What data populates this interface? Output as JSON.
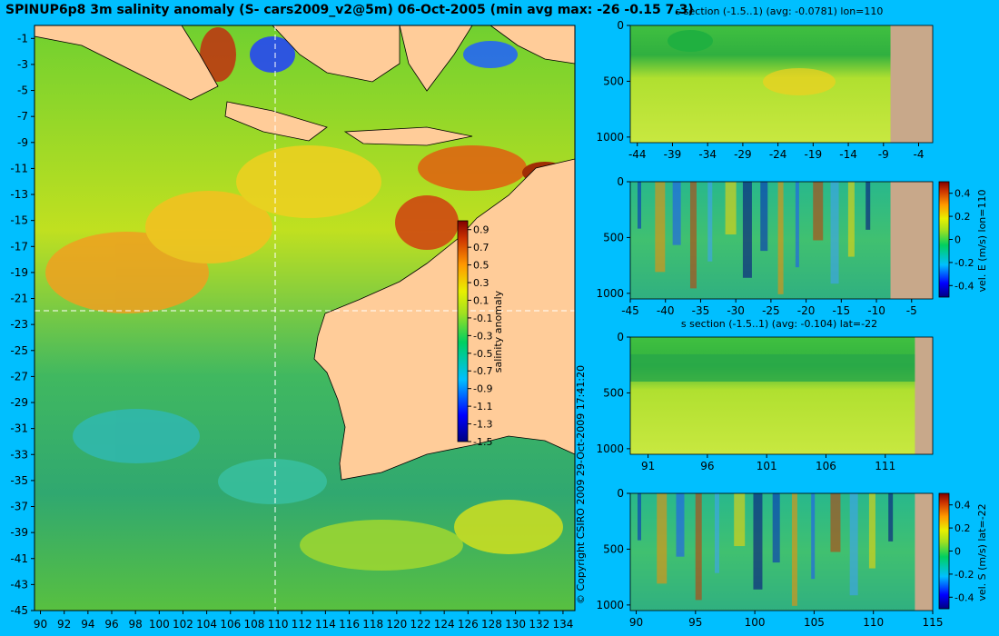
{
  "title": "SPINUP6p8 3m salinity anomaly (S- cars2009_v2@5m) 06-Oct-2005 (min avg max: -26 -0.15 7.3)",
  "copyright": "© Copyright CSIRO 2009   29-Oct-2009 17:41:20",
  "colors": {
    "background": "#00bfff",
    "land": "#ffcc99",
    "section_land": "#c8a88a",
    "guide_line": "#ffffff"
  },
  "chart_data": [
    {
      "id": "main_map",
      "type": "heatmap",
      "title": "SPINUP6p8 3m salinity anomaly (S- cars2009_v2@5m) 06-Oct-2005 (min avg max: -26 -0.15 7.3)",
      "xlim": [
        89.5,
        135
      ],
      "ylim": [
        -45,
        0
      ],
      "x_ticks": [
        90,
        92,
        94,
        96,
        98,
        100,
        102,
        104,
        106,
        108,
        110,
        112,
        114,
        116,
        118,
        120,
        122,
        124,
        126,
        128,
        130,
        132,
        134
      ],
      "y_ticks": [
        -1,
        -3,
        -5,
        -7,
        -9,
        -11,
        -13,
        -15,
        -17,
        -19,
        -21,
        -23,
        -25,
        -27,
        -29,
        -31,
        -33,
        -35,
        -37,
        -39,
        -41,
        -43,
        -45
      ],
      "guide_lon": 110,
      "guide_lat": -22,
      "colorbar": {
        "label": "salinity anomaly",
        "ticks": [
          0.9,
          0.7,
          0.5,
          0.3,
          0.1,
          -0.1,
          -0.3,
          -0.5,
          -0.7,
          -0.9,
          -1.1,
          -1.3,
          -1.5
        ],
        "range": [
          -1.5,
          1.0
        ]
      }
    },
    {
      "id": "section_s_lon",
      "type": "heatmap",
      "title": "s section (-1.5..1) (avg: -0.0781) lon=110",
      "xlim": [
        -45,
        -2
      ],
      "ylim": [
        0,
        1050
      ],
      "x_ticks": [
        -44,
        -39,
        -34,
        -29,
        -24,
        -19,
        -14,
        -9,
        -4
      ],
      "y_ticks": [
        0,
        500,
        1000
      ],
      "land_start": -8.0
    },
    {
      "id": "section_ve_lon",
      "type": "heatmap",
      "title": "",
      "xlim": [
        -45,
        -2
      ],
      "ylim": [
        0,
        1050
      ],
      "x_ticks": [
        -45,
        -40,
        -35,
        -30,
        -25,
        -20,
        -15,
        -10,
        -5
      ],
      "y_ticks": [
        0,
        500,
        1000
      ],
      "land_start": -8.0,
      "colorbar": {
        "label": "vel. E (m/s) lon=110",
        "ticks": [
          0.4,
          0.2,
          0,
          -0.2,
          -0.4
        ],
        "range": [
          -0.5,
          0.5
        ]
      }
    },
    {
      "id": "section_s_lat",
      "type": "heatmap",
      "title": "s section (-1.5..1) (avg: -0.104) lat=-22",
      "xlim": [
        89.5,
        115
      ],
      "ylim": [
        0,
        1050
      ],
      "x_ticks": [
        91,
        96,
        101,
        106,
        111
      ],
      "y_ticks": [
        0,
        500,
        1000
      ],
      "land_start": 113.5
    },
    {
      "id": "section_vs_lat",
      "type": "heatmap",
      "title": "",
      "xlim": [
        89.5,
        115
      ],
      "ylim": [
        0,
        1050
      ],
      "x_ticks": [
        90,
        95,
        100,
        105,
        110,
        115
      ],
      "y_ticks": [
        0,
        500,
        1000
      ],
      "land_start": 113.5,
      "colorbar": {
        "label": "vel. S (m/s) lat=-22",
        "ticks": [
          0.4,
          0.2,
          0,
          -0.2,
          -0.4
        ],
        "range": [
          -0.5,
          0.5
        ]
      }
    }
  ]
}
